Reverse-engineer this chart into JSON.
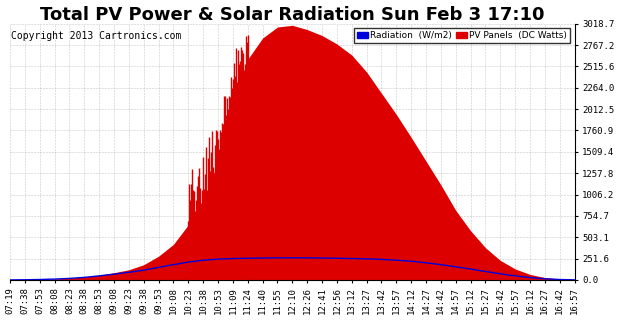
{
  "title": "Total PV Power & Solar Radiation Sun Feb 3 17:10",
  "copyright": "Copyright 2013 Cartronics.com",
  "background_color": "#ffffff",
  "plot_bg_color": "#ffffff",
  "grid_color": "#b0b0b0",
  "yticks": [
    0.0,
    251.6,
    503.1,
    754.7,
    1006.2,
    1257.8,
    1509.4,
    1760.9,
    2012.5,
    2264.0,
    2515.6,
    2767.2,
    3018.7
  ],
  "ymax": 3018.7,
  "x_labels": [
    "07:19",
    "07:38",
    "07:53",
    "08:08",
    "08:23",
    "08:38",
    "08:53",
    "09:08",
    "09:23",
    "09:38",
    "09:53",
    "10:08",
    "10:23",
    "10:38",
    "10:53",
    "11:09",
    "11:24",
    "11:40",
    "11:55",
    "12:10",
    "12:26",
    "12:41",
    "12:56",
    "13:12",
    "13:27",
    "13:42",
    "13:57",
    "14:12",
    "14:27",
    "14:42",
    "14:57",
    "15:12",
    "15:27",
    "15:42",
    "15:57",
    "16:12",
    "16:27",
    "16:42",
    "16:57"
  ],
  "legend_radiation_label": "Radiation  (W/m2)",
  "legend_pv_label": "PV Panels  (DC Watts)",
  "radiation_color": "#0000dd",
  "pv_color": "#dd0000",
  "title_fontsize": 13,
  "tick_fontsize": 6.5,
  "copyright_fontsize": 7
}
